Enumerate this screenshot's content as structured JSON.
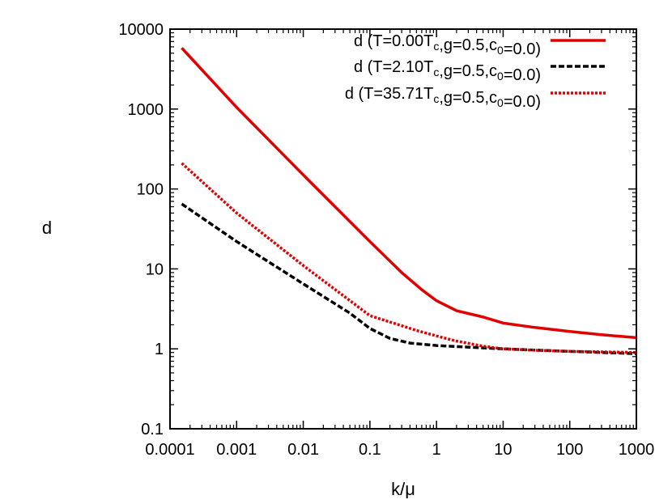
{
  "chart_data": {
    "type": "line",
    "xlabel": "k/μ",
    "ylabel": "d",
    "x_scale": "log",
    "y_scale": "log",
    "xlim": [
      0.0001,
      1000
    ],
    "ylim": [
      0.1,
      10000
    ],
    "x_ticks": [
      "0.0001",
      "0.001",
      "0.01",
      "0.1",
      "1",
      "10",
      "100",
      "1000"
    ],
    "y_ticks": [
      "0.1",
      "1",
      "10",
      "100",
      "1000",
      "10000"
    ],
    "grid": false,
    "legend_position": "top-right",
    "series": [
      {
        "name": "d (T=0.00T_c,g=0.5,c_0=0.0)",
        "legend": {
          "pre": "d (T=0.00T",
          "sub1": "c",
          "mid": ",g=0.5,c",
          "sub2": "0",
          "post": "=0.0)"
        },
        "color": "#e00000",
        "style": "solid",
        "x": [
          0.00015,
          0.001,
          0.01,
          0.1,
          0.3,
          0.6,
          1,
          2,
          5,
          10,
          30,
          100,
          300,
          1000
        ],
        "y": [
          5800,
          1050,
          150,
          22,
          9,
          5.5,
          4,
          3,
          2.5,
          2.1,
          1.85,
          1.65,
          1.5,
          1.38
        ]
      },
      {
        "name": "d (T=2.10T_c,g=0.5,c_0=0.0)",
        "legend": {
          "pre": "d (T=2.10T",
          "sub1": "c",
          "mid": ",g=0.5,c",
          "sub2": "0",
          "post": "=0.0)"
        },
        "color": "#000000",
        "style": "dashed",
        "x": [
          0.00015,
          0.001,
          0.01,
          0.05,
          0.1,
          0.2,
          0.4,
          1,
          3,
          10,
          100,
          1000
        ],
        "y": [
          65,
          22,
          6.5,
          2.8,
          1.8,
          1.35,
          1.18,
          1.1,
          1.05,
          1.0,
          0.93,
          0.87
        ]
      },
      {
        "name": "d (T=35.71T_c,g=0.5,c_0=0.0)",
        "legend": {
          "pre": "d (T=35.71T",
          "sub1": "c",
          "mid": ",g=0.5,c",
          "sub2": "0",
          "post": "=0.0)"
        },
        "color": "#e00000",
        "style": "dotted",
        "x": [
          0.00015,
          0.001,
          0.01,
          0.1,
          0.5,
          1,
          2,
          5,
          10,
          30,
          100,
          1000
        ],
        "y": [
          210,
          50,
          11,
          2.6,
          1.7,
          1.45,
          1.25,
          1.08,
          1.0,
          0.96,
          0.93,
          0.9
        ]
      }
    ]
  }
}
